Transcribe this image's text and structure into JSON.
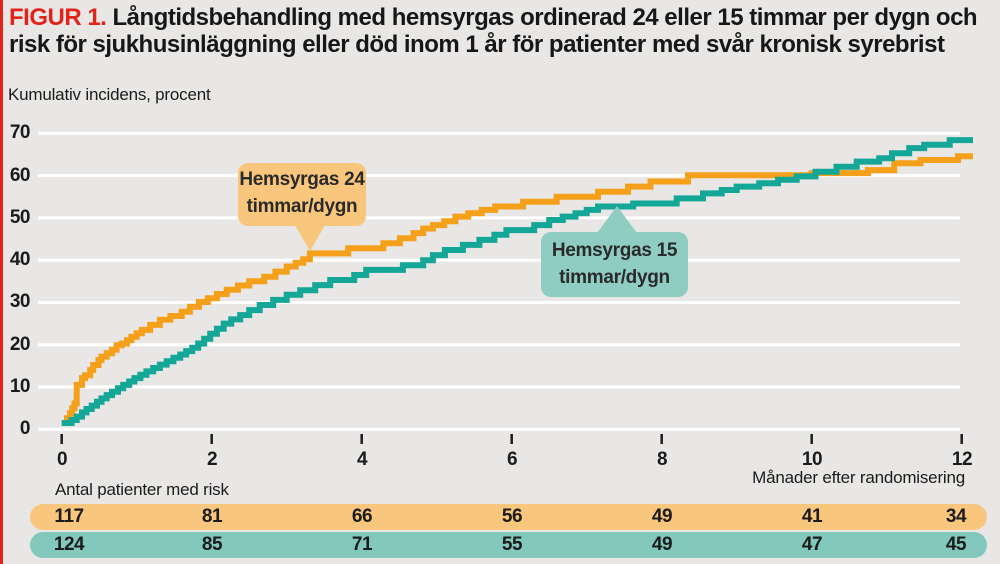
{
  "figure": {
    "label": "FIGUR 1.",
    "title": "Långtidsbehandling med hemsyrgas ordinerad 24 eller 15 timmar per dygn och risk för sjukhusinläggning eller död inom 1 år för patienter med svår kronisk syrebrist",
    "accent_red": "#e2231a",
    "background": "#e8e7e5"
  },
  "chart_data": {
    "type": "line",
    "subtype": "step",
    "ylabel": "Kumulativ incidens, procent",
    "xlabel": "Månader efter randomisering",
    "ylim": [
      0,
      70
    ],
    "xlim": [
      0,
      12.15
    ],
    "y_ticks": [
      0,
      10,
      20,
      30,
      40,
      50,
      60,
      70
    ],
    "x_ticks": [
      0,
      2,
      4,
      6,
      8,
      10,
      12
    ],
    "grid": "horizontal-white",
    "legend_position": "callouts-on-plot",
    "series": [
      {
        "name": "Hemsyrgas 24 timmar/dygn",
        "color": "#f5a01a",
        "points": [
          [
            0,
            1.5
          ],
          [
            0.07,
            2.6
          ],
          [
            0.11,
            3.8
          ],
          [
            0.14,
            5
          ],
          [
            0.17,
            6.1
          ],
          [
            0.2,
            10.5
          ],
          [
            0.27,
            12.1
          ],
          [
            0.31,
            12.8
          ],
          [
            0.38,
            14
          ],
          [
            0.42,
            15.2
          ],
          [
            0.49,
            16.4
          ],
          [
            0.53,
            17.2
          ],
          [
            0.6,
            18
          ],
          [
            0.67,
            18.8
          ],
          [
            0.73,
            19.9
          ],
          [
            0.8,
            20.3
          ],
          [
            0.87,
            21.1
          ],
          [
            0.93,
            21.9
          ],
          [
            1,
            22.7
          ],
          [
            1.07,
            23.5
          ],
          [
            1.18,
            24.7
          ],
          [
            1.31,
            25.9
          ],
          [
            1.45,
            26.8
          ],
          [
            1.6,
            27.8
          ],
          [
            1.71,
            29
          ],
          [
            1.83,
            30.1
          ],
          [
            1.95,
            31
          ],
          [
            2.07,
            32
          ],
          [
            2.2,
            33
          ],
          [
            2.35,
            34
          ],
          [
            2.5,
            35
          ],
          [
            2.7,
            36.1
          ],
          [
            2.85,
            37.3
          ],
          [
            3,
            38.5
          ],
          [
            3.12,
            39.4
          ],
          [
            3.22,
            40.2
          ],
          [
            3.31,
            41.6
          ],
          [
            3.82,
            42.8
          ],
          [
            4.29,
            44
          ],
          [
            4.51,
            45.2
          ],
          [
            4.69,
            46.4
          ],
          [
            4.82,
            47.5
          ],
          [
            4.95,
            48.3
          ],
          [
            5.1,
            49.2
          ],
          [
            5.25,
            50.3
          ],
          [
            5.42,
            51.1
          ],
          [
            5.6,
            51.9
          ],
          [
            5.78,
            52.7
          ],
          [
            6.15,
            53.8
          ],
          [
            6.6,
            55
          ],
          [
            7.15,
            56.2
          ],
          [
            7.55,
            57.4
          ],
          [
            7.85,
            58.6
          ],
          [
            8.35,
            60.1
          ],
          [
            10,
            60.6
          ],
          [
            10.75,
            61.3
          ],
          [
            11.1,
            62.9
          ],
          [
            11.45,
            63.7
          ],
          [
            11.95,
            64.6
          ]
        ]
      },
      {
        "name": "Hemsyrgas 15 timmar/dygn",
        "color": "#14a697",
        "points": [
          [
            0,
            1.5
          ],
          [
            0.13,
            2.2
          ],
          [
            0.2,
            3
          ],
          [
            0.27,
            4
          ],
          [
            0.33,
            4.8
          ],
          [
            0.4,
            5.6
          ],
          [
            0.47,
            6.5
          ],
          [
            0.53,
            7.3
          ],
          [
            0.6,
            8.1
          ],
          [
            0.67,
            8.9
          ],
          [
            0.75,
            9.7
          ],
          [
            0.82,
            10.5
          ],
          [
            0.9,
            11.3
          ],
          [
            0.97,
            12.1
          ],
          [
            1.05,
            12.9
          ],
          [
            1.13,
            13.7
          ],
          [
            1.22,
            14.5
          ],
          [
            1.31,
            15.3
          ],
          [
            1.4,
            16.1
          ],
          [
            1.49,
            16.9
          ],
          [
            1.58,
            17.7
          ],
          [
            1.66,
            18.5
          ],
          [
            1.74,
            19.3
          ],
          [
            1.82,
            20.3
          ],
          [
            1.9,
            21.4
          ],
          [
            1.98,
            22.6
          ],
          [
            2.07,
            23.8
          ],
          [
            2.16,
            25
          ],
          [
            2.26,
            26
          ],
          [
            2.38,
            27
          ],
          [
            2.5,
            28.2
          ],
          [
            2.64,
            29.4
          ],
          [
            2.82,
            30.6
          ],
          [
            3,
            31.8
          ],
          [
            3.18,
            32.9
          ],
          [
            3.38,
            34.1
          ],
          [
            3.58,
            35.3
          ],
          [
            3.9,
            36.5
          ],
          [
            4.06,
            37.7
          ],
          [
            4.55,
            38.8
          ],
          [
            4.82,
            40
          ],
          [
            4.95,
            41.2
          ],
          [
            5.11,
            42.4
          ],
          [
            5.35,
            43.6
          ],
          [
            5.57,
            44.8
          ],
          [
            5.77,
            46
          ],
          [
            5.93,
            47.1
          ],
          [
            6.3,
            48.3
          ],
          [
            6.5,
            49.5
          ],
          [
            6.68,
            50.3
          ],
          [
            6.85,
            51.1
          ],
          [
            7,
            51.9
          ],
          [
            7.15,
            52.7
          ],
          [
            7.62,
            53.4
          ],
          [
            8.2,
            54.6
          ],
          [
            8.55,
            55.8
          ],
          [
            8.8,
            56.6
          ],
          [
            9,
            57.4
          ],
          [
            9.3,
            58.2
          ],
          [
            9.55,
            59
          ],
          [
            9.8,
            59.8
          ],
          [
            10.05,
            60.9
          ],
          [
            10.33,
            62.1
          ],
          [
            10.6,
            63.3
          ],
          [
            10.9,
            64.1
          ],
          [
            11.07,
            65.3
          ],
          [
            11.3,
            66.5
          ],
          [
            11.5,
            67.3
          ],
          [
            11.84,
            68.4
          ]
        ]
      }
    ],
    "annotations": [
      {
        "line1": "Hemsyrgas 24",
        "line2": "timmar/dygn",
        "fill": "#f8c67c",
        "pointer": "down"
      },
      {
        "line1": "Hemsyrgas 15",
        "line2": "timmar/dygn",
        "fill": "#8fcdc3",
        "pointer": "up"
      }
    ]
  },
  "risk_table": {
    "label": "Antal patienter med risk",
    "rows": [
      {
        "name": "Hemsyrgas 24 timmar/dygn",
        "fill": "#f8c67c",
        "values": [
          "117",
          "81",
          "66",
          "56",
          "49",
          "41",
          "34"
        ]
      },
      {
        "name": "Hemsyrgas 15 timmar/dygn",
        "fill": "#82c8bd",
        "values": [
          "124",
          "85",
          "71",
          "55",
          "49",
          "47",
          "45"
        ]
      }
    ]
  }
}
